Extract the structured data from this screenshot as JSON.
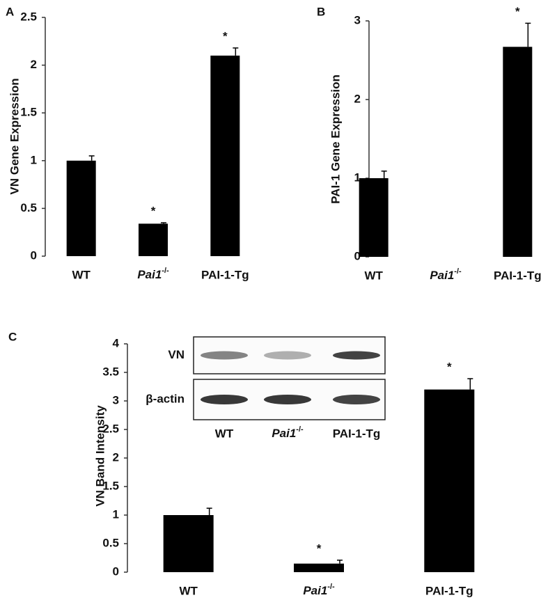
{
  "chart_data": [
    {
      "type": "bar",
      "panel": "A",
      "y_label": "VN Gene Expression",
      "categories": [
        "WT",
        "Pai1-/-",
        "PAI-1-Tg"
      ],
      "values": [
        1.0,
        0.34,
        2.1
      ],
      "errors": [
        0.05,
        0.01,
        0.08
      ],
      "significance": [
        null,
        "*",
        "*"
      ],
      "color": "#000000",
      "ylim": [
        0,
        2.5
      ],
      "yticks": [
        0,
        0.5,
        1,
        1.5,
        2,
        2.5
      ]
    },
    {
      "type": "bar",
      "panel": "B",
      "y_label": "PAI-1 Gene Expression",
      "categories": [
        "WT",
        "Pai1-/-",
        "PAI-1-Tg"
      ],
      "values": [
        1.0,
        0,
        2.67
      ],
      "errors": [
        0.09,
        null,
        0.3
      ],
      "significance": [
        null,
        null,
        "*"
      ],
      "color": "#000000",
      "ylim": [
        0,
        3
      ],
      "yticks": [
        0,
        1,
        2,
        3
      ]
    },
    {
      "type": "bar",
      "panel": "C",
      "y_label": "VN Band Intensity",
      "categories": [
        "WT",
        "Pai1-/-",
        "PAI-1-Tg"
      ],
      "values": [
        1.0,
        0.15,
        3.2
      ],
      "errors": [
        0.12,
        0.06,
        0.19
      ],
      "significance": [
        null,
        "*",
        "*"
      ],
      "color": "#000000",
      "ylim": [
        0,
        4
      ],
      "yticks": [
        0,
        0.5,
        1,
        1.5,
        2,
        2.5,
        3,
        3.5,
        4
      ],
      "inset": {
        "rows": [
          "VN",
          "β-actin"
        ],
        "lanes": [
          "WT",
          "Pai1-/-",
          "PAI-1-Tg"
        ]
      }
    }
  ]
}
